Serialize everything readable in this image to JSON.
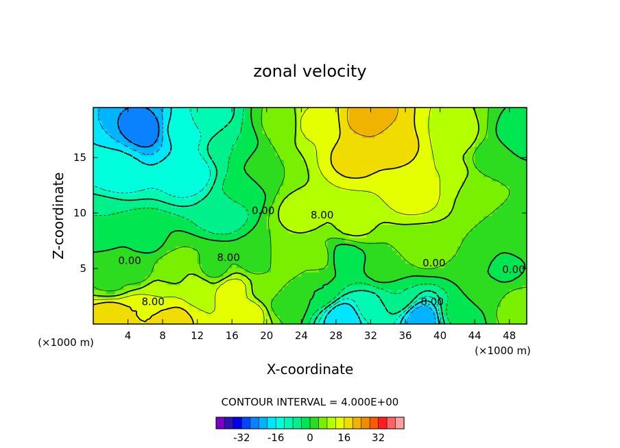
{
  "chart_data": {
    "type": "heatmap",
    "title": "zonal velocity",
    "xlabel": "X-coordinate",
    "ylabel": "Z-coordinate",
    "x_units": "(×1000 m)",
    "y_units": "(×1000 m)",
    "xlim": [
      0,
      50
    ],
    "ylim": [
      0,
      19.5
    ],
    "x_ticks": [
      4,
      8,
      12,
      16,
      20,
      24,
      28,
      32,
      36,
      40,
      44,
      48
    ],
    "y_ticks": [
      5,
      10,
      15
    ],
    "contour_interval_text": "CONTOUR INTERVAL = 4.000E+00",
    "contour_labels": [
      {
        "text": "0.00",
        "x": 19.6,
        "y": 10.2
      },
      {
        "text": "8.00",
        "x": 26.4,
        "y": 9.8
      },
      {
        "text": "8.00",
        "x": 15.6,
        "y": 6.0
      },
      {
        "text": "0.00",
        "x": 4.2,
        "y": 5.7
      },
      {
        "text": "0.00",
        "x": 39.3,
        "y": 5.5
      },
      {
        "text": "8.00",
        "x": 6.9,
        "y": 2.0
      },
      {
        "text": "8.00",
        "x": 39.1,
        "y": 2.0
      },
      {
        "text": "0.00",
        "x": 48.5,
        "y": 4.9
      }
    ],
    "colorbar": {
      "levels": [
        -40,
        -36,
        -32,
        -28,
        -24,
        -20,
        -16,
        -12,
        -8,
        -4,
        0,
        4,
        8,
        12,
        16,
        20,
        24,
        28,
        32,
        36,
        40
      ],
      "colors": [
        "#7a00c8",
        "#2a14b4",
        "#0000e6",
        "#0046ff",
        "#0a82ff",
        "#00b4ff",
        "#00e6ff",
        "#00ffdc",
        "#00fab4",
        "#00f08c",
        "#00e650",
        "#2ddc1e",
        "#78f000",
        "#b4ff00",
        "#e6ff00",
        "#f0dc00",
        "#f0b400",
        "#f08c00",
        "#ff5a00",
        "#ff1e1e",
        "#ff6464",
        "#ffa0a0"
      ],
      "tick_labels": [
        "-32",
        "-16",
        "0",
        "16",
        "32"
      ],
      "tick_values": [
        -32,
        -16,
        0,
        16,
        32
      ]
    },
    "anchors": [
      {
        "x": 6,
        "y": 17.5,
        "v": -26
      },
      {
        "x": 3,
        "y": 14,
        "v": -15
      },
      {
        "x": 11,
        "y": 13.5,
        "v": -15
      },
      {
        "x": 10,
        "y": 17.5,
        "v": -15
      },
      {
        "x": 13,
        "y": 18.5,
        "v": -11
      },
      {
        "x": 16,
        "y": 16,
        "v": -4
      },
      {
        "x": 15,
        "y": 10,
        "v": -7
      },
      {
        "x": 17,
        "y": 12,
        "v": -3
      },
      {
        "x": 20,
        "y": 14,
        "v": 4
      },
      {
        "x": 22,
        "y": 18,
        "v": 5
      },
      {
        "x": 25,
        "y": 18,
        "v": 13
      },
      {
        "x": 30,
        "y": 15,
        "v": 17
      },
      {
        "x": 32,
        "y": 18.5,
        "v": 22
      },
      {
        "x": 35,
        "y": 16,
        "v": 17
      },
      {
        "x": 37,
        "y": 12,
        "v": 15
      },
      {
        "x": 41,
        "y": 13,
        "v": 12
      },
      {
        "x": 42,
        "y": 17,
        "v": 10
      },
      {
        "x": 44,
        "y": 12,
        "v": 5
      },
      {
        "x": 46,
        "y": 15,
        "v": 2
      },
      {
        "x": 49,
        "y": 17,
        "v": -2
      },
      {
        "x": 49,
        "y": 8,
        "v": 1
      },
      {
        "x": 30,
        "y": 9,
        "v": 9
      },
      {
        "x": 24,
        "y": 10,
        "v": 10
      },
      {
        "x": 22,
        "y": 6,
        "v": 7
      },
      {
        "x": 1,
        "y": 9,
        "v": -4
      },
      {
        "x": 6,
        "y": 7.5,
        "v": -1
      },
      {
        "x": 5,
        "y": 5,
        "v": 2
      },
      {
        "x": 2,
        "y": 4,
        "v": 3
      },
      {
        "x": 9,
        "y": 4.5,
        "v": 7
      },
      {
        "x": 14,
        "y": 5,
        "v": 3
      },
      {
        "x": 16,
        "y": 3,
        "v": 14
      },
      {
        "x": 12,
        "y": 3,
        "v": 11
      },
      {
        "x": 8,
        "y": 2.5,
        "v": 12
      },
      {
        "x": 5,
        "y": 1,
        "v": 16
      },
      {
        "x": 2,
        "y": 0.5,
        "v": 20
      },
      {
        "x": 9,
        "y": 0.5,
        "v": 18
      },
      {
        "x": 18,
        "y": 1,
        "v": 14
      },
      {
        "x": 20,
        "y": 3,
        "v": 6
      },
      {
        "x": 26,
        "y": 3,
        "v": 0
      },
      {
        "x": 29,
        "y": 0.5,
        "v": -20
      },
      {
        "x": 32,
        "y": 1.5,
        "v": -10
      },
      {
        "x": 38,
        "y": 0.5,
        "v": -22
      },
      {
        "x": 35,
        "y": 2.5,
        "v": -4
      },
      {
        "x": 42,
        "y": 1,
        "v": -3
      },
      {
        "x": 45,
        "y": 3,
        "v": 2
      },
      {
        "x": 49,
        "y": 1.5,
        "v": 6
      },
      {
        "x": 29,
        "y": 6,
        "v": -2
      },
      {
        "x": 34,
        "y": 5,
        "v": 3
      },
      {
        "x": 38,
        "y": 7,
        "v": 7
      },
      {
        "x": 44,
        "y": 6,
        "v": 4
      },
      {
        "x": 47,
        "y": 5,
        "v": -1
      },
      {
        "x": 26,
        "y": 6,
        "v": 5
      },
      {
        "x": 19,
        "y": 6,
        "v": 1
      },
      {
        "x": 22,
        "y": 2,
        "v": 2
      }
    ]
  }
}
